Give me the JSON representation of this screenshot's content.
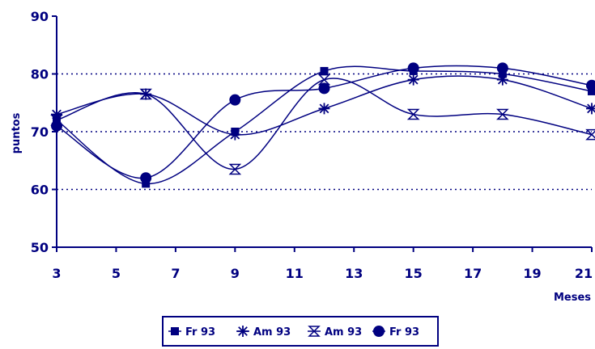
{
  "chart_data": {
    "type": "line",
    "xlabel": "Meses",
    "ylabel": "puntos",
    "xlim": [
      3,
      21
    ],
    "ylim": [
      50,
      90
    ],
    "x_ticks": [
      "3",
      "5",
      "7",
      "9",
      "11",
      "13",
      "15",
      "17",
      "19",
      "21"
    ],
    "y_ticks": [
      "50",
      "60",
      "70",
      "80",
      "90"
    ],
    "grid": "horizontal dotted lines at 60, 70, 80",
    "legend_position": "bottom",
    "line_color": "#000080",
    "series": [
      {
        "name": "Fr 93",
        "marker": "square",
        "x": [
          3,
          6,
          9,
          12,
          15,
          18,
          21
        ],
        "y": [
          72,
          61,
          70,
          80.5,
          80.5,
          80,
          77
        ]
      },
      {
        "name": "Am 93",
        "marker": "asterisk",
        "x": [
          3,
          6,
          9,
          12,
          15,
          18,
          21
        ],
        "y": [
          73,
          76.5,
          69.5,
          74,
          79,
          79,
          74
        ]
      },
      {
        "name": "Am 93",
        "marker": "hourglass",
        "x": [
          3,
          6,
          9,
          12,
          15,
          18,
          21
        ],
        "y": [
          72,
          76.5,
          63.5,
          79,
          73,
          73,
          69.5
        ]
      },
      {
        "name": "Fr 93",
        "marker": "circle",
        "x": [
          3,
          6,
          9,
          12,
          15,
          18,
          21
        ],
        "y": [
          71,
          62,
          75.5,
          77.5,
          81,
          81,
          78
        ]
      }
    ]
  }
}
